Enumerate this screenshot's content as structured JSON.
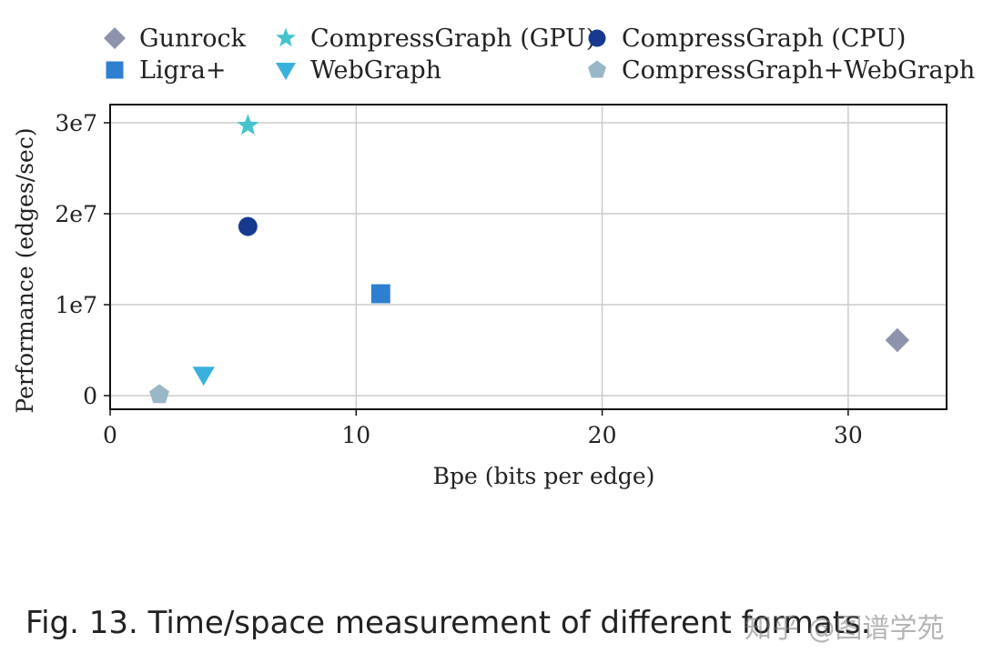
{
  "chart_data": {
    "type": "scatter",
    "xlabel": "Bpe (bits per edge)",
    "ylabel": "Performance (edges/sec)",
    "xlim": [
      0,
      34
    ],
    "ylim": [
      -1500000,
      32000000
    ],
    "grid": true,
    "legend_position": "top",
    "x_ticks": [
      {
        "value": 0,
        "label": "0"
      },
      {
        "value": 10,
        "label": "10"
      },
      {
        "value": 20,
        "label": "20"
      },
      {
        "value": 30,
        "label": "30"
      }
    ],
    "y_ticks": [
      {
        "value": 0,
        "label": "0"
      },
      {
        "value": 10000000,
        "label": "1e7"
      },
      {
        "value": 20000000,
        "label": "2e7"
      },
      {
        "value": 30000000,
        "label": "3e7"
      }
    ],
    "series": [
      {
        "name": "Gunrock",
        "marker": "diamond",
        "color": "#8e93ad",
        "x": 32,
        "y": 6100000
      },
      {
        "name": "Ligra+",
        "marker": "square",
        "color": "#2e7fd0",
        "x": 11,
        "y": 11200000
      },
      {
        "name": "CompressGraph (GPU)",
        "marker": "star",
        "color": "#44c4cc",
        "x": 5.6,
        "y": 29700000
      },
      {
        "name": "WebGraph",
        "marker": "triangle-down",
        "color": "#38b2dc",
        "x": 3.8,
        "y": 2300000
      },
      {
        "name": "CompressGraph (CPU)",
        "marker": "circle",
        "color": "#173a90",
        "x": 5.6,
        "y": 18600000
      },
      {
        "name": "CompressGraph+WebGraph",
        "marker": "pentagon",
        "color": "#9ab7c8",
        "x": 2.0,
        "y": 100000
      }
    ]
  },
  "caption": "Fig. 13.  Time/space measurement of different formats.",
  "watermark": "知乎 @图谱学苑"
}
